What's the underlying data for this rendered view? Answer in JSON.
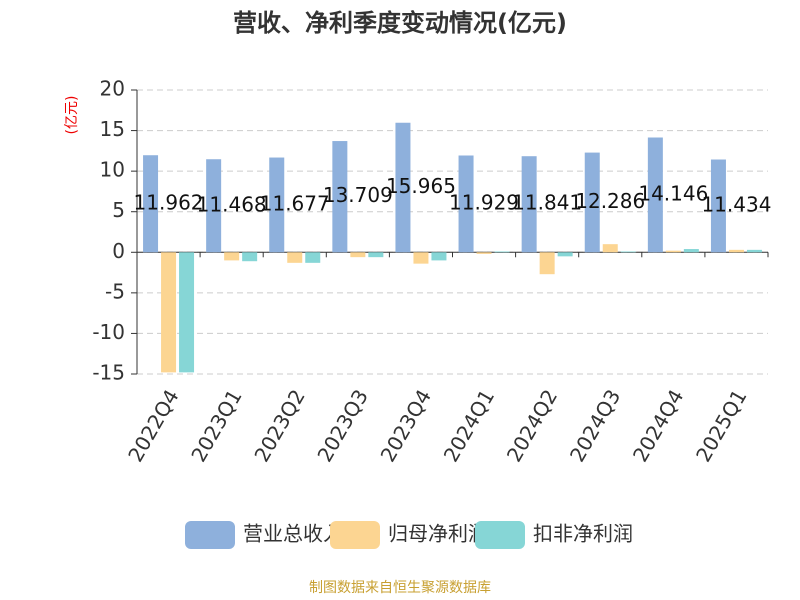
{
  "chart_data": {
    "type": "bar",
    "title": "营收、净利季度变动情况(亿元)",
    "y_label": "(亿元)",
    "source": "制图数据来自恒生聚源数据库",
    "categories": [
      "2022Q4",
      "2023Q1",
      "2023Q2",
      "2023Q3",
      "2023Q4",
      "2024Q1",
      "2024Q2",
      "2024Q3",
      "2024Q4",
      "2025Q1"
    ],
    "series": [
      {
        "name": "营业总收入",
        "color": "#8eb0dc",
        "values": [
          11.962,
          11.468,
          11.677,
          13.709,
          15.965,
          11.929,
          11.841,
          12.286,
          14.146,
          11.434
        ],
        "show_labels": true
      },
      {
        "name": "归母净利润",
        "color": "#fcd592",
        "values": [
          -14.8,
          -1.0,
          -1.3,
          -0.6,
          -1.4,
          -0.2,
          -2.7,
          1.0,
          0.2,
          0.3
        ]
      },
      {
        "name": "扣非净利润",
        "color": "#86d6d6",
        "values": [
          -14.8,
          -1.1,
          -1.3,
          -0.6,
          -1.0,
          0.1,
          -0.5,
          0.1,
          0.4,
          0.3
        ]
      }
    ],
    "ylim": [
      -15,
      20
    ],
    "yticks": [
      -15,
      -10,
      -5,
      0,
      5,
      10,
      15,
      20
    ],
    "grid": true,
    "legend": "bottom"
  }
}
